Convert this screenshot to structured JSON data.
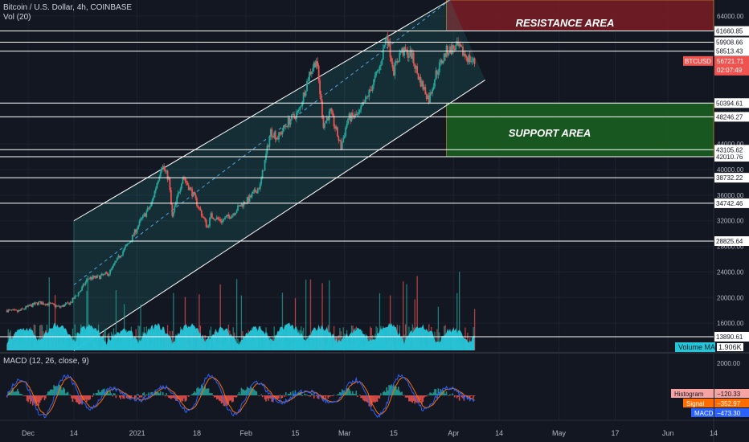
{
  "header": {
    "symbol_line": "Bitcoin / U.S. Dollar, 4h, COINBASE",
    "volume_label": "Vol (20)",
    "volume_ma_label": "Volume MA",
    "volume_ma_value": "1.906K",
    "macd_label": "MACD (12, 26, close, 9)"
  },
  "colors": {
    "background": "#131722",
    "grid": "#1e2230",
    "up": "#26a69a",
    "down": "#ef5350",
    "volume_ma": "#26c6da",
    "channel": "#ffffff",
    "resistance_fill": "#7b1c24",
    "support_fill": "#1b5e20",
    "macd_line": "#2962ff",
    "signal_line": "#ff6d00"
  },
  "price_badge": {
    "ticker": "BTCUSD",
    "price": "56721.71",
    "countdown": "02:07:49"
  },
  "zones": {
    "resistance": {
      "label": "RESISTANCE AREA",
      "from": 61660.85,
      "to": 66500,
      "start": "2021-03-30"
    },
    "support": {
      "label": "SUPPORT AREA",
      "from": 42010.76,
      "to": 50394.61,
      "start": "2021-03-30"
    }
  },
  "macd_legend": {
    "histogram_label": "Histogram",
    "histogram_value": "−120.33",
    "signal_label": "Signal",
    "signal_value": "−352.97",
    "macd_label": "MACD",
    "macd_value": "−473.30"
  },
  "chart_data": [
    {
      "type": "candlestick",
      "title": "Bitcoin / U.S. Dollar, 4h, COINBASE",
      "ylim": [
        11500,
        66500
      ],
      "x_ticks": [
        "Dec",
        "14",
        "2021",
        "18",
        "Feb",
        "15",
        "Mar",
        "15",
        "Apr",
        "14",
        "May",
        "17",
        "Jun",
        "14"
      ],
      "y_ticks": [
        16000,
        20000,
        24000,
        28000,
        32000,
        36000,
        40000,
        44000,
        64000
      ],
      "horizontal_levels": [
        13890.61,
        28825.64,
        34742.46,
        38732.22,
        42010.76,
        43105.62,
        48246.27,
        50394.61,
        58513.43,
        59908.66,
        61660.85
      ],
      "channel_lines": [
        {
          "name": "upper",
          "points": [
            [
              "2020-12-14",
              32000
            ],
            [
              "2021-03-31",
              66500
            ]
          ]
        },
        {
          "name": "lower",
          "points": [
            [
              "2020-12-14",
              11700
            ],
            [
              "2021-04-10",
              54000
            ]
          ]
        },
        {
          "name": "middle",
          "points": [
            [
              "2020-12-14",
              22000
            ],
            [
              "2021-03-31",
              66500
            ]
          ]
        }
      ],
      "close_path": [
        [
          "2020-11-25",
          18000
        ],
        [
          "2020-11-28",
          17800
        ],
        [
          "2020-12-01",
          18600
        ],
        [
          "2020-12-04",
          19200
        ],
        [
          "2020-12-07",
          19000
        ],
        [
          "2020-12-10",
          18500
        ],
        [
          "2020-12-13",
          19200
        ],
        [
          "2020-12-16",
          21200
        ],
        [
          "2020-12-18",
          23000
        ],
        [
          "2020-12-21",
          23200
        ],
        [
          "2020-12-24",
          23800
        ],
        [
          "2020-12-27",
          26500
        ],
        [
          "2020-12-30",
          28800
        ],
        [
          "2021-01-02",
          32000
        ],
        [
          "2021-01-05",
          34500
        ],
        [
          "2021-01-08",
          40800
        ],
        [
          "2021-01-10",
          38500
        ],
        [
          "2021-01-11",
          32500
        ],
        [
          "2021-01-14",
          39000
        ],
        [
          "2021-01-17",
          36000
        ],
        [
          "2021-01-21",
          31000
        ],
        [
          "2021-01-22",
          32800
        ],
        [
          "2021-01-25",
          32000
        ],
        [
          "2021-01-28",
          33000
        ],
        [
          "2021-01-30",
          34200
        ],
        [
          "2021-02-02",
          35500
        ],
        [
          "2021-02-05",
          37500
        ],
        [
          "2021-02-08",
          46000
        ],
        [
          "2021-02-10",
          45000
        ],
        [
          "2021-02-13",
          47500
        ],
        [
          "2021-02-16",
          49000
        ],
        [
          "2021-02-19",
          55000
        ],
        [
          "2021-02-21",
          57200
        ],
        [
          "2021-02-23",
          47000
        ],
        [
          "2021-02-25",
          49000
        ],
        [
          "2021-02-28",
          43500
        ],
        [
          "2021-03-02",
          48000
        ],
        [
          "2021-03-05",
          48500
        ],
        [
          "2021-03-08",
          52000
        ],
        [
          "2021-03-11",
          56000
        ],
        [
          "2021-03-13",
          61200
        ],
        [
          "2021-03-15",
          55500
        ],
        [
          "2021-03-17",
          58500
        ],
        [
          "2021-03-20",
          58000
        ],
        [
          "2021-03-22",
          54500
        ],
        [
          "2021-03-25",
          51000
        ],
        [
          "2021-03-27",
          55000
        ],
        [
          "2021-03-30",
          58500
        ],
        [
          "2021-04-02",
          59200
        ],
        [
          "2021-04-05",
          57500
        ],
        [
          "2021-04-07",
          56721.71
        ]
      ]
    },
    {
      "type": "bar",
      "title": "Vol (20)",
      "series": [
        {
          "name": "Volume MA",
          "last_value": "1.906K"
        }
      ]
    },
    {
      "type": "line",
      "title": "MACD (12, 26, close, 9)",
      "y_ticks": [
        2000
      ],
      "series": [
        {
          "name": "Histogram",
          "last_value": -120.33
        },
        {
          "name": "Signal",
          "last_value": -352.97
        },
        {
          "name": "MACD",
          "last_value": -473.3
        }
      ]
    }
  ]
}
